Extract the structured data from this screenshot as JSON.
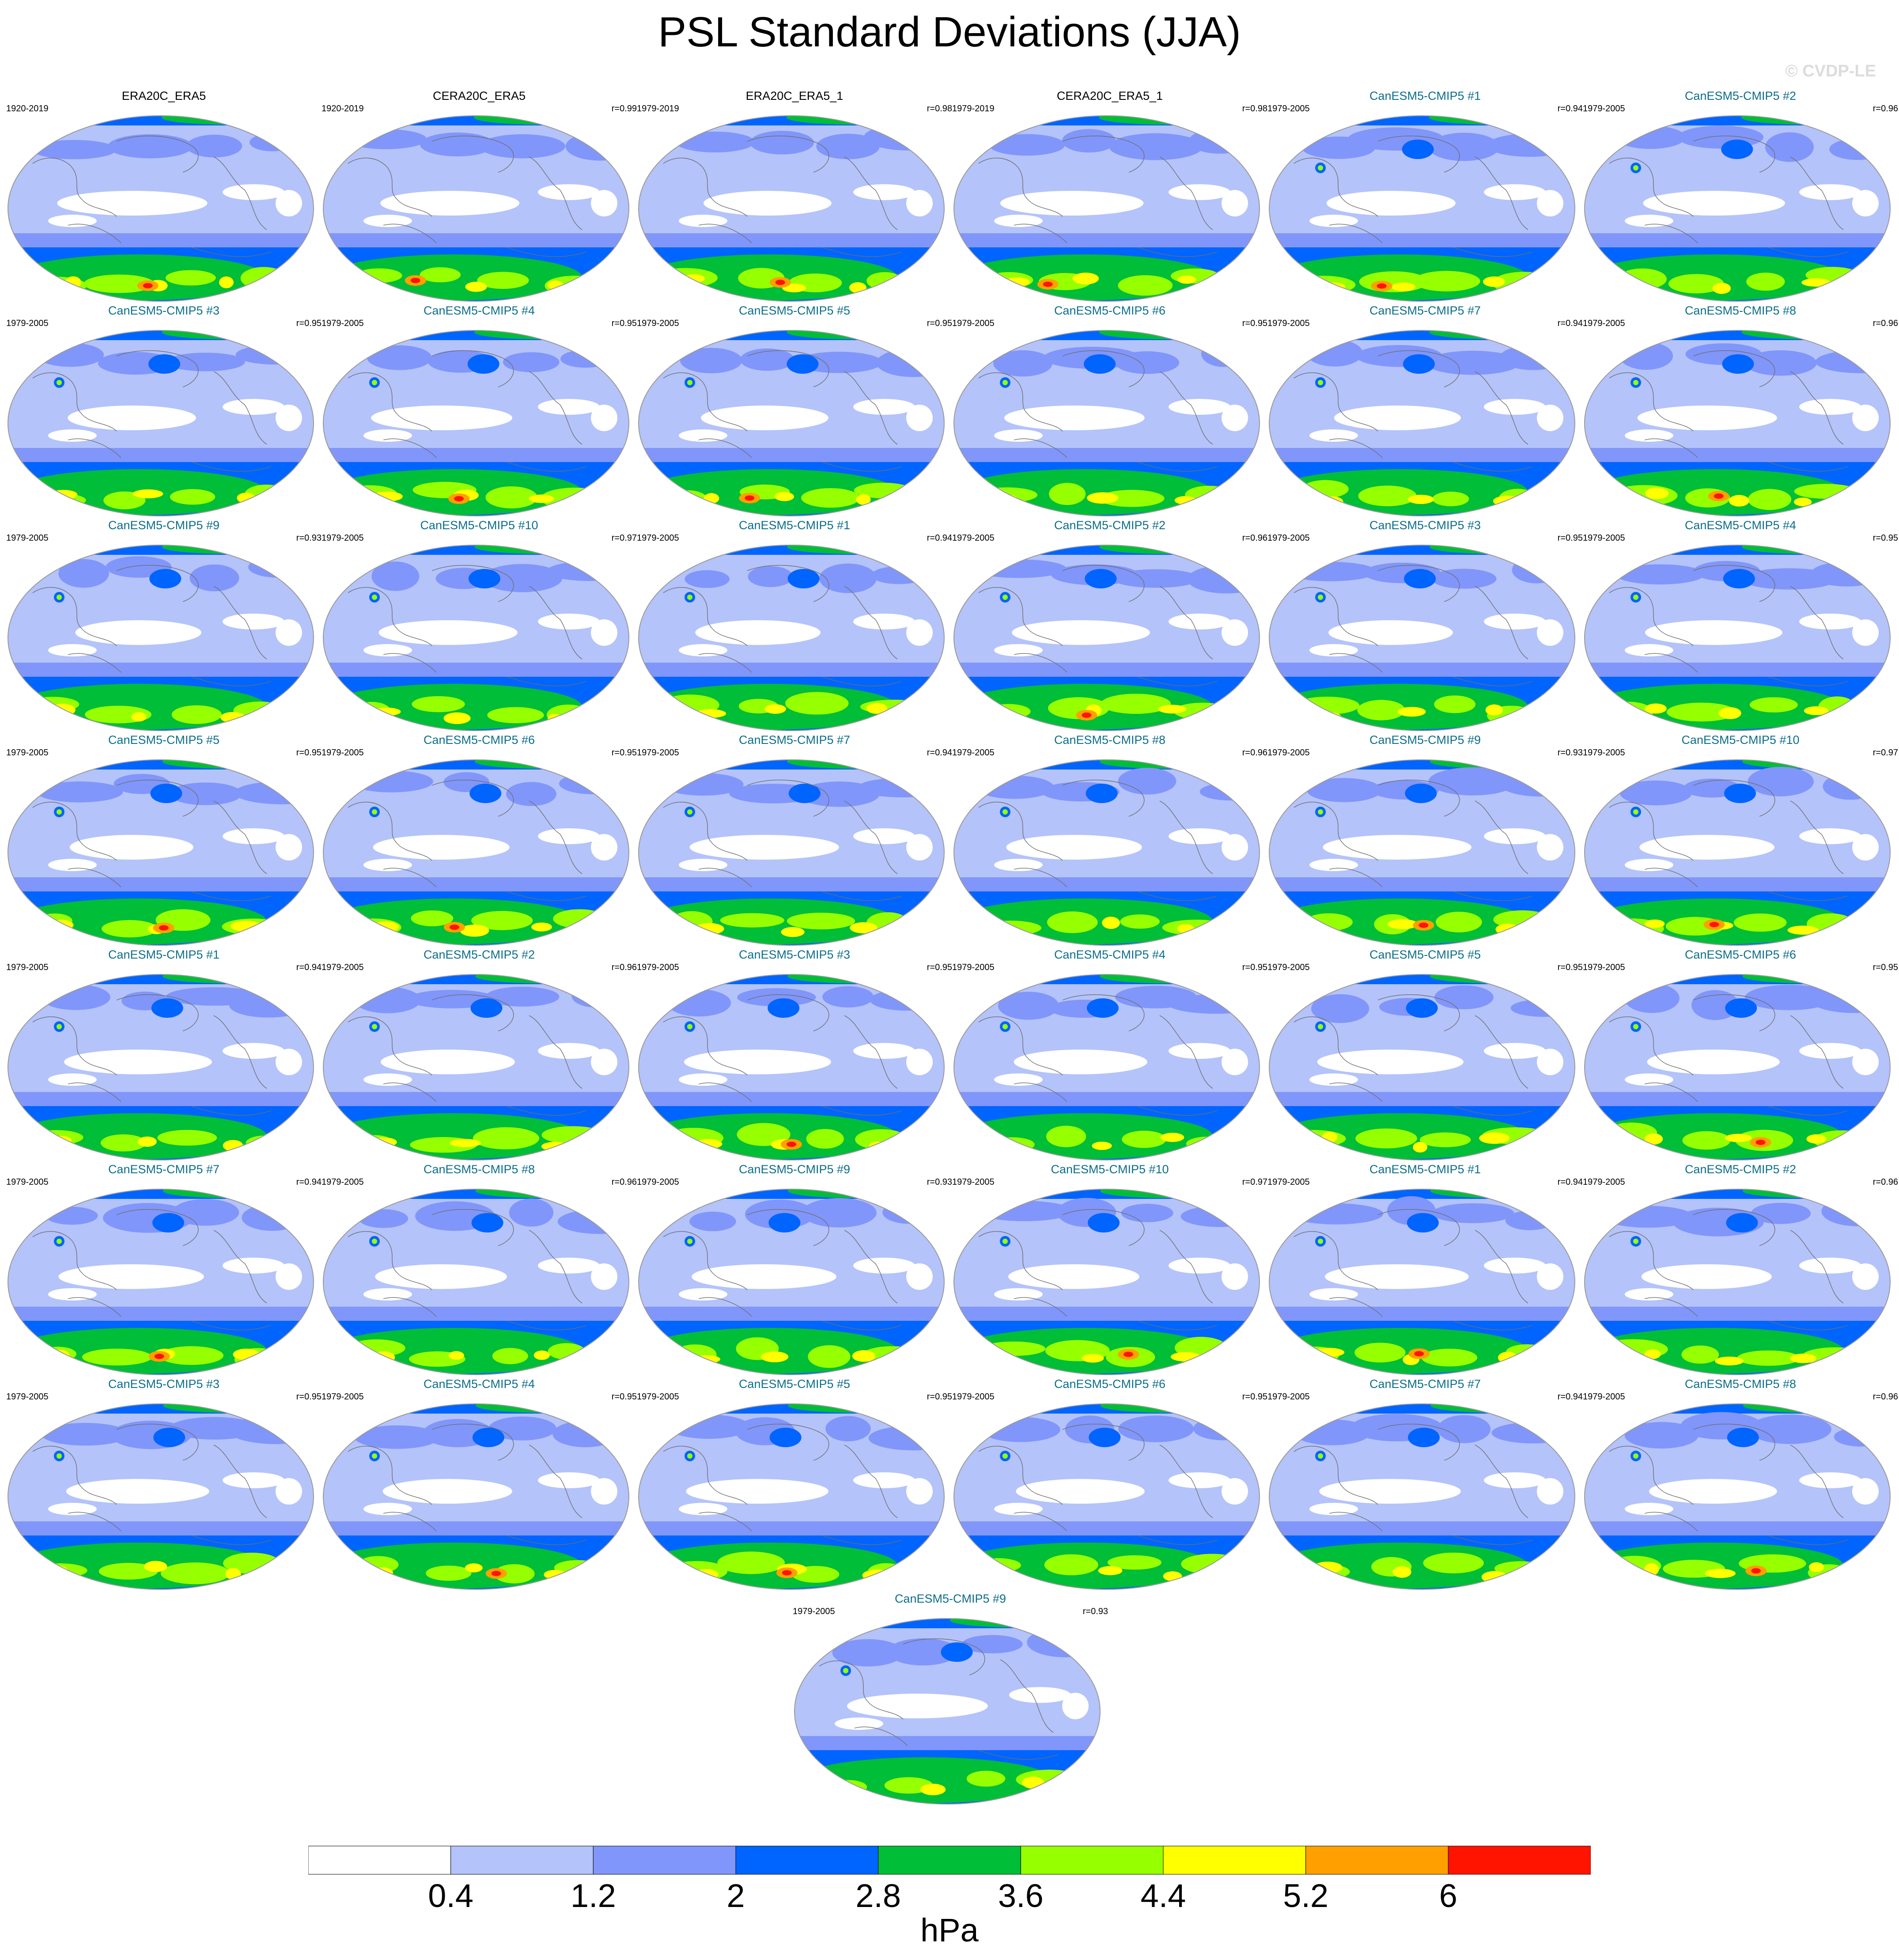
{
  "title": "PSL Standard Deviations (JJA)",
  "watermark": "© CVDP-LE",
  "colors": {
    "title_obs": "#000000",
    "title_model": "#0b6e8a",
    "levels": [
      "#ffffff",
      "#b4c3fa",
      "#8196fa",
      "#0064ff",
      "#00be37",
      "#96ff00",
      "#ffff00",
      "#ffa000",
      "#ff1400"
    ]
  },
  "colorbar": {
    "levels": [
      0.4,
      1.2,
      2,
      2.8,
      3.6,
      4.4,
      5.2,
      6
    ],
    "labels": [
      "0.4",
      "1.2",
      "2",
      "2.8",
      "3.6",
      "4.4",
      "5.2",
      "6"
    ],
    "units": "hPa"
  },
  "chart_data": {
    "type": "heatmap",
    "description_free": true,
    "panels": [
      {
        "title": "ERA20C_ERA5",
        "years": "1920-2019",
        "corr": "",
        "kind": "obs"
      },
      {
        "title": "CERA20C_ERA5",
        "years": "1920-2019",
        "corr": "r=0.99",
        "kind": "obs"
      },
      {
        "title": "ERA20C_ERA5_1",
        "years": "1979-2019",
        "corr": "r=0.98",
        "kind": "obs"
      },
      {
        "title": "CERA20C_ERA5_1",
        "years": "1979-2019",
        "corr": "r=0.98",
        "kind": "obs"
      },
      {
        "title": "CanESM5-CMIP5 #1",
        "years": "1979-2005",
        "corr": "r=0.94",
        "kind": "model"
      },
      {
        "title": "CanESM5-CMIP5 #2",
        "years": "1979-2005",
        "corr": "r=0.96",
        "kind": "model"
      },
      {
        "title": "CanESM5-CMIP5 #3",
        "years": "1979-2005",
        "corr": "r=0.95",
        "kind": "model"
      },
      {
        "title": "CanESM5-CMIP5 #4",
        "years": "1979-2005",
        "corr": "r=0.95",
        "kind": "model"
      },
      {
        "title": "CanESM5-CMIP5 #5",
        "years": "1979-2005",
        "corr": "r=0.95",
        "kind": "model"
      },
      {
        "title": "CanESM5-CMIP5 #6",
        "years": "1979-2005",
        "corr": "r=0.95",
        "kind": "model"
      },
      {
        "title": "CanESM5-CMIP5 #7",
        "years": "1979-2005",
        "corr": "r=0.94",
        "kind": "model"
      },
      {
        "title": "CanESM5-CMIP5 #8",
        "years": "1979-2005",
        "corr": "r=0.96",
        "kind": "model"
      },
      {
        "title": "CanESM5-CMIP5 #9",
        "years": "1979-2005",
        "corr": "r=0.93",
        "kind": "model"
      },
      {
        "title": "CanESM5-CMIP5 #10",
        "years": "1979-2005",
        "corr": "r=0.97",
        "kind": "model"
      },
      {
        "title": "CanESM5-CMIP5 #1",
        "years": "1979-2005",
        "corr": "r=0.94",
        "kind": "model"
      },
      {
        "title": "CanESM5-CMIP5 #2",
        "years": "1979-2005",
        "corr": "r=0.96",
        "kind": "model"
      },
      {
        "title": "CanESM5-CMIP5 #3",
        "years": "1979-2005",
        "corr": "r=0.95",
        "kind": "model"
      },
      {
        "title": "CanESM5-CMIP5 #4",
        "years": "1979-2005",
        "corr": "r=0.95",
        "kind": "model"
      },
      {
        "title": "CanESM5-CMIP5 #5",
        "years": "1979-2005",
        "corr": "r=0.95",
        "kind": "model"
      },
      {
        "title": "CanESM5-CMIP5 #6",
        "years": "1979-2005",
        "corr": "r=0.95",
        "kind": "model"
      },
      {
        "title": "CanESM5-CMIP5 #7",
        "years": "1979-2005",
        "corr": "r=0.94",
        "kind": "model"
      },
      {
        "title": "CanESM5-CMIP5 #8",
        "years": "1979-2005",
        "corr": "r=0.96",
        "kind": "model"
      },
      {
        "title": "CanESM5-CMIP5 #9",
        "years": "1979-2005",
        "corr": "r=0.93",
        "kind": "model"
      },
      {
        "title": "CanESM5-CMIP5 #10",
        "years": "1979-2005",
        "corr": "r=0.97",
        "kind": "model"
      },
      {
        "title": "CanESM5-CMIP5 #1",
        "years": "1979-2005",
        "corr": "r=0.94",
        "kind": "model"
      },
      {
        "title": "CanESM5-CMIP5 #2",
        "years": "1979-2005",
        "corr": "r=0.96",
        "kind": "model"
      },
      {
        "title": "CanESM5-CMIP5 #3",
        "years": "1979-2005",
        "corr": "r=0.95",
        "kind": "model"
      },
      {
        "title": "CanESM5-CMIP5 #4",
        "years": "1979-2005",
        "corr": "r=0.95",
        "kind": "model"
      },
      {
        "title": "CanESM5-CMIP5 #5",
        "years": "1979-2005",
        "corr": "r=0.95",
        "kind": "model"
      },
      {
        "title": "CanESM5-CMIP5 #6",
        "years": "1979-2005",
        "corr": "r=0.95",
        "kind": "model"
      },
      {
        "title": "CanESM5-CMIP5 #7",
        "years": "1979-2005",
        "corr": "r=0.94",
        "kind": "model"
      },
      {
        "title": "CanESM5-CMIP5 #8",
        "years": "1979-2005",
        "corr": "r=0.96",
        "kind": "model"
      },
      {
        "title": "CanESM5-CMIP5 #9",
        "years": "1979-2005",
        "corr": "r=0.93",
        "kind": "model"
      },
      {
        "title": "CanESM5-CMIP5 #10",
        "years": "1979-2005",
        "corr": "r=0.97",
        "kind": "model"
      },
      {
        "title": "CanESM5-CMIP5 #1",
        "years": "1979-2005",
        "corr": "r=0.94",
        "kind": "model"
      },
      {
        "title": "CanESM5-CMIP5 #2",
        "years": "1979-2005",
        "corr": "r=0.96",
        "kind": "model"
      },
      {
        "title": "CanESM5-CMIP5 #3",
        "years": "1979-2005",
        "corr": "r=0.95",
        "kind": "model"
      },
      {
        "title": "CanESM5-CMIP5 #4",
        "years": "1979-2005",
        "corr": "r=0.95",
        "kind": "model"
      },
      {
        "title": "CanESM5-CMIP5 #5",
        "years": "1979-2005",
        "corr": "r=0.95",
        "kind": "model"
      },
      {
        "title": "CanESM5-CMIP5 #6",
        "years": "1979-2005",
        "corr": "r=0.95",
        "kind": "model"
      },
      {
        "title": "CanESM5-CMIP5 #7",
        "years": "1979-2005",
        "corr": "r=0.94",
        "kind": "model"
      },
      {
        "title": "CanESM5-CMIP5 #8",
        "years": "1979-2005",
        "corr": "r=0.96",
        "kind": "model"
      },
      {
        "title": "CanESM5-CMIP5 #9",
        "years": "1979-2005",
        "corr": "r=0.93",
        "kind": "model"
      }
    ]
  }
}
